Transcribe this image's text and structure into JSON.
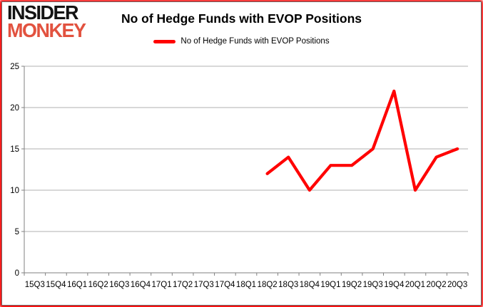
{
  "logo": {
    "line1": "INSIDER",
    "line2": "MONKEY"
  },
  "header": {
    "title": "No of Hedge Funds with EVOP Positions"
  },
  "legend": {
    "label": "No of Hedge Funds with EVOP Positions"
  },
  "colors": {
    "series": "#ff0000",
    "logo_black": "#141414",
    "logo_red": "#e2523f",
    "grid": "#b0b0b0",
    "axis": "#808080",
    "text": "#000000",
    "frame_glow": "#ff0000"
  },
  "chart_data": {
    "type": "line",
    "title": "No of Hedge Funds with EVOP Positions",
    "categories": [
      "15Q3",
      "15Q4",
      "16Q1",
      "16Q2",
      "16Q3",
      "16Q4",
      "17Q1",
      "17Q2",
      "17Q3",
      "17Q4",
      "18Q1",
      "18Q2",
      "18Q3",
      "18Q4",
      "19Q1",
      "19Q2",
      "19Q3",
      "19Q4",
      "20Q1",
      "20Q2",
      "20Q3"
    ],
    "series": [
      {
        "name": "No of Hedge Funds with EVOP Positions",
        "color": "#ff0000",
        "values": [
          null,
          null,
          null,
          null,
          null,
          null,
          null,
          null,
          null,
          null,
          null,
          12,
          14,
          10,
          13,
          13,
          15,
          22,
          10,
          14,
          15
        ]
      }
    ],
    "xlabel": "",
    "ylabel": "",
    "ylim": [
      0,
      25
    ],
    "yticks": [
      0,
      5,
      10,
      15,
      20,
      25
    ],
    "grid": true,
    "legend_position": "top-center"
  }
}
